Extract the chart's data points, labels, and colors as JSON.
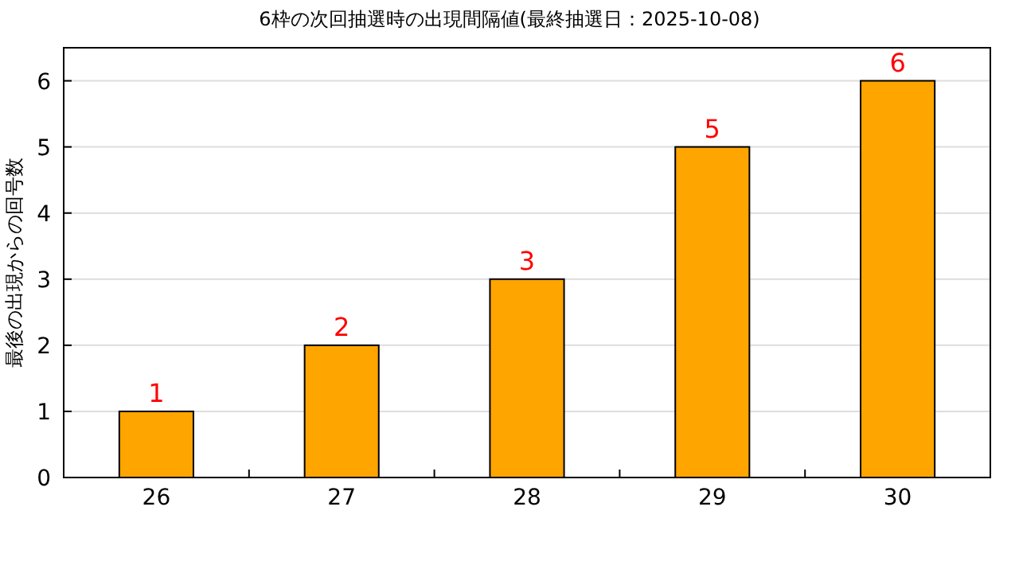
{
  "chart_data": {
    "type": "bar",
    "title": "6枠の次回抽選時の出現間隔値(最終抽選日：2025-10-08)",
    "ylabel": "最後の出現からの回号数",
    "categories": [
      "26",
      "27",
      "28",
      "29",
      "30"
    ],
    "values": [
      1,
      2,
      3,
      5,
      6
    ],
    "color": "#ffa500",
    "ylim": [
      0,
      6.5
    ],
    "yticks": [
      0,
      1,
      2,
      3,
      4,
      5,
      6
    ],
    "grid": "y",
    "data_labels": true
  }
}
